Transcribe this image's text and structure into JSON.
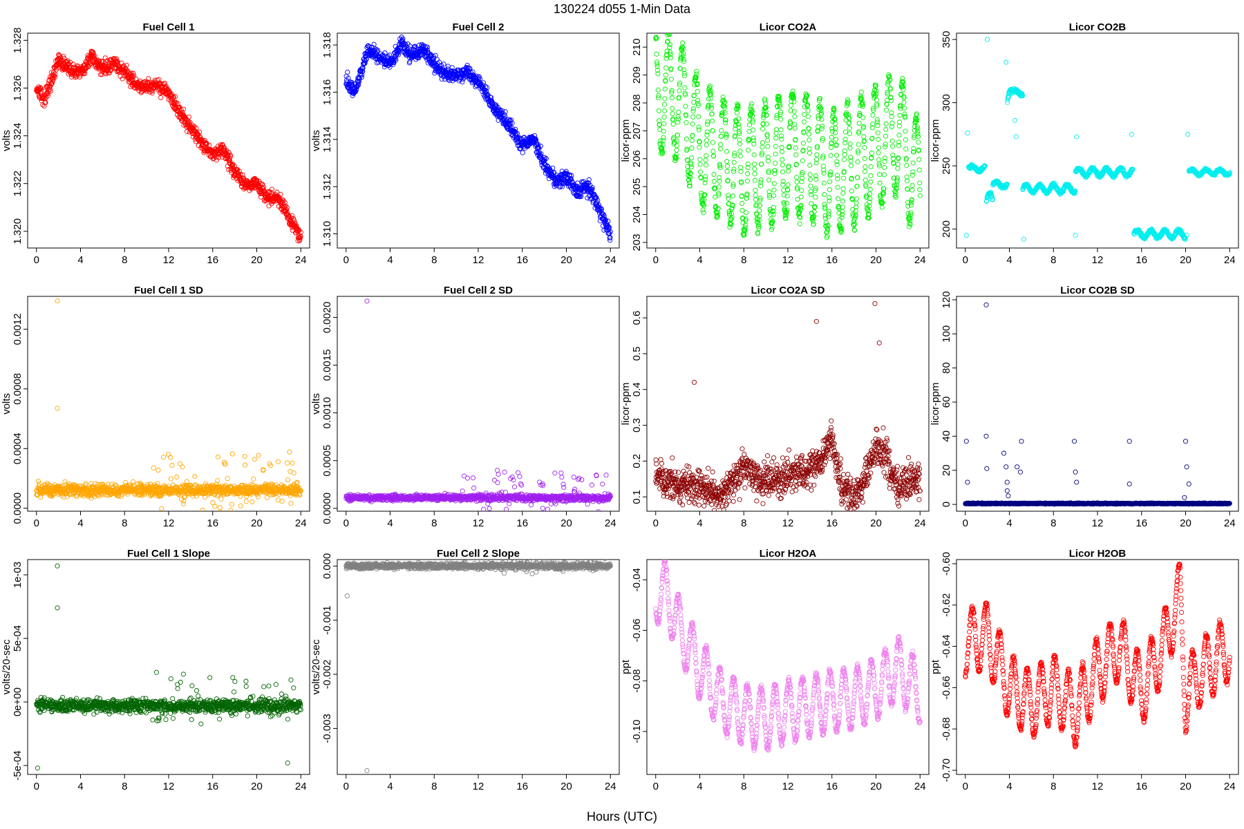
{
  "figure": {
    "title": "130224   d055   1-Min Data",
    "xlabel": "Hours (UTC)"
  },
  "chart_data": [
    {
      "id": "fc1",
      "type": "scatter",
      "title": "Fuel Cell 1",
      "ylabel": "volts",
      "color": "#ff0000",
      "xlim": [
        0,
        24
      ],
      "xticks": [
        "0",
        "4",
        "8",
        "12",
        "16",
        "20",
        "24"
      ],
      "ylim": [
        1.3193,
        1.3283
      ],
      "yticks": [
        {
          "v": 1.32,
          "label": "1.320"
        },
        {
          "v": 1.322,
          "label": "1.322"
        },
        {
          "v": 1.324,
          "label": "1.324"
        },
        {
          "v": 1.326,
          "label": "1.326"
        },
        {
          "v": 1.328,
          "label": "1.328"
        }
      ],
      "trend": [
        [
          0,
          1.326
        ],
        [
          0.7,
          1.3255
        ],
        [
          1.5,
          1.3265
        ],
        [
          2,
          1.3272
        ],
        [
          3,
          1.3268
        ],
        [
          4,
          1.3266
        ],
        [
          5,
          1.3273
        ],
        [
          6,
          1.3268
        ],
        [
          7,
          1.3271
        ],
        [
          8,
          1.3266
        ],
        [
          9,
          1.3262
        ],
        [
          10,
          1.326
        ],
        [
          11,
          1.3261
        ],
        [
          12,
          1.3258
        ],
        [
          13,
          1.325
        ],
        [
          14,
          1.3243
        ],
        [
          15,
          1.3237
        ],
        [
          16,
          1.3233
        ],
        [
          17,
          1.3234
        ],
        [
          18,
          1.3225
        ],
        [
          19,
          1.3219
        ],
        [
          20,
          1.322
        ],
        [
          21,
          1.3214
        ],
        [
          22,
          1.3214
        ],
        [
          23,
          1.3205
        ],
        [
          24,
          1.3197
        ]
      ],
      "noise": 0.0003,
      "outliers": []
    },
    {
      "id": "fc2",
      "type": "scatter",
      "title": "Fuel Cell 2",
      "ylabel": "volts",
      "color": "#0000ff",
      "xlim": [
        0,
        24
      ],
      "xticks": [
        "0",
        "4",
        "8",
        "12",
        "16",
        "20",
        "24"
      ],
      "ylim": [
        1.3094,
        1.3185
      ],
      "yticks": [
        {
          "v": 1.31,
          "label": "1.310"
        },
        {
          "v": 1.312,
          "label": "1.312"
        },
        {
          "v": 1.314,
          "label": "1.314"
        },
        {
          "v": 1.316,
          "label": "1.316"
        },
        {
          "v": 1.318,
          "label": "1.318"
        }
      ],
      "trend": [
        [
          0,
          1.3165
        ],
        [
          0.7,
          1.316
        ],
        [
          1.5,
          1.317
        ],
        [
          2,
          1.3178
        ],
        [
          3,
          1.3175
        ],
        [
          4,
          1.3172
        ],
        [
          5,
          1.318
        ],
        [
          6,
          1.3175
        ],
        [
          7,
          1.3178
        ],
        [
          8,
          1.3172
        ],
        [
          9,
          1.3168
        ],
        [
          10,
          1.3167
        ],
        [
          11,
          1.3168
        ],
        [
          12,
          1.3165
        ],
        [
          13,
          1.3157
        ],
        [
          14,
          1.315
        ],
        [
          15,
          1.3145
        ],
        [
          16,
          1.3137
        ],
        [
          17,
          1.314
        ],
        [
          18,
          1.313
        ],
        [
          19,
          1.3122
        ],
        [
          20,
          1.3124
        ],
        [
          21,
          1.3118
        ],
        [
          22,
          1.312
        ],
        [
          23,
          1.311
        ],
        [
          24,
          1.31
        ]
      ],
      "noise": 0.0003,
      "outliers": []
    },
    {
      "id": "co2a",
      "type": "scatter",
      "title": "Licor CO2A",
      "ylabel": "licor-ppm",
      "color": "#00ee00",
      "xlim": [
        0,
        24
      ],
      "xticks": [
        "0",
        "4",
        "8",
        "12",
        "16",
        "20",
        "24"
      ],
      "ylim": [
        202.8,
        210.5
      ],
      "yticks": [
        {
          "v": 203,
          "label": "203"
        },
        {
          "v": 204,
          "label": "204"
        },
        {
          "v": 205,
          "label": "205"
        },
        {
          "v": 206,
          "label": "206"
        },
        {
          "v": 207,
          "label": "207"
        },
        {
          "v": 208,
          "label": "208"
        },
        {
          "v": 209,
          "label": "209"
        },
        {
          "v": 210,
          "label": "210"
        }
      ],
      "trend": [
        [
          0,
          208.5
        ],
        [
          2,
          208.2
        ],
        [
          4,
          206.5
        ],
        [
          6,
          206.0
        ],
        [
          8,
          205.5
        ],
        [
          10,
          205.8
        ],
        [
          12,
          206.2
        ],
        [
          14,
          206.0
        ],
        [
          16,
          205.5
        ],
        [
          18,
          205.8
        ],
        [
          20,
          206.3
        ],
        [
          22,
          207.0
        ],
        [
          24,
          205.0
        ]
      ],
      "osc": {
        "amp": 2.2,
        "period": 1.25
      },
      "noise": 0.25,
      "outliers": []
    },
    {
      "id": "co2b",
      "type": "scatter",
      "title": "Licor CO2B",
      "ylabel": "licor-ppm",
      "color": "#00eeee",
      "xlim": [
        0,
        24
      ],
      "xticks": [
        "0",
        "4",
        "8",
        "12",
        "16",
        "20",
        "24"
      ],
      "ylim": [
        185,
        355
      ],
      "yticks": [
        {
          "v": 200,
          "label": "200"
        },
        {
          "v": 250,
          "label": "250"
        },
        {
          "v": 300,
          "label": "300"
        },
        {
          "v": 350,
          "label": "350"
        }
      ],
      "segments": [
        [
          0.3,
          1.8,
          248,
          2
        ],
        [
          1.9,
          2.5,
          222,
          6
        ],
        [
          2.5,
          3.8,
          235,
          2
        ],
        [
          3.8,
          4.2,
          300,
          10
        ],
        [
          4.2,
          5.2,
          308,
          2
        ],
        [
          5.2,
          10,
          232,
          3
        ],
        [
          10,
          15.2,
          245,
          3
        ],
        [
          15.3,
          20,
          196,
          3
        ],
        [
          20.3,
          24,
          245,
          2
        ]
      ],
      "noise": 1.2,
      "outliers": [
        [
          0.1,
          195
        ],
        [
          0.2,
          276
        ],
        [
          2.0,
          350
        ],
        [
          3.7,
          332
        ],
        [
          5.3,
          192
        ],
        [
          10.0,
          195
        ],
        [
          10.1,
          273
        ],
        [
          15.1,
          275
        ],
        [
          20.1,
          195
        ],
        [
          20.2,
          275
        ],
        [
          4.5,
          286
        ],
        [
          4.6,
          273
        ]
      ]
    },
    {
      "id": "fc1sd",
      "type": "scatter",
      "title": "Fuel Cell 1 SD",
      "ylabel": "volts",
      "color": "#ffa500",
      "xlim": [
        0,
        24
      ],
      "xticks": [
        "0",
        "4",
        "8",
        "12",
        "16",
        "20",
        "24"
      ],
      "ylim": [
        -2e-05,
        0.00142
      ],
      "yticks": [
        {
          "v": 0.0,
          "label": "0.0000"
        },
        {
          "v": 0.0004,
          "label": "0.0004"
        },
        {
          "v": 0.0008,
          "label": "0.0008"
        },
        {
          "v": 0.0012,
          "label": "0.0012"
        }
      ],
      "base": 0.00012,
      "noise": 4e-05,
      "hiSpread": 0.00025,
      "outliers": [
        [
          1.9,
          0.00139
        ],
        [
          1.9,
          0.00067
        ]
      ]
    },
    {
      "id": "fc2sd",
      "type": "scatter",
      "title": "Fuel Cell 2 SD",
      "ylabel": "volts",
      "color": "#a020f0",
      "xlim": [
        0,
        24
      ],
      "xticks": [
        "0",
        "4",
        "8",
        "12",
        "16",
        "20",
        "24"
      ],
      "ylim": [
        -3e-05,
        0.00222
      ],
      "yticks": [
        {
          "v": 0.0,
          "label": "0.0000"
        },
        {
          "v": 0.0005,
          "label": "0.0005"
        },
        {
          "v": 0.001,
          "label": "0.0010"
        },
        {
          "v": 0.0015,
          "label": "0.0015"
        },
        {
          "v": 0.002,
          "label": "0.0020"
        }
      ],
      "base": 0.00011,
      "noise": 3e-05,
      "hiSpread": 0.00028,
      "outliers": [
        [
          1.9,
          0.00217
        ]
      ]
    },
    {
      "id": "co2asd",
      "type": "scatter",
      "title": "Licor CO2A SD",
      "ylabel": "licor-ppm",
      "color": "#8b0000",
      "xlim": [
        0,
        24
      ],
      "xticks": [
        "0",
        "4",
        "8",
        "12",
        "16",
        "20",
        "24"
      ],
      "ylim": [
        0.06,
        0.66
      ],
      "yticks": [
        {
          "v": 0.1,
          "label": "0.1"
        },
        {
          "v": 0.2,
          "label": "0.2"
        },
        {
          "v": 0.3,
          "label": "0.3"
        },
        {
          "v": 0.4,
          "label": "0.4"
        },
        {
          "v": 0.5,
          "label": "0.5"
        },
        {
          "v": 0.6,
          "label": "0.6"
        }
      ],
      "trend": [
        [
          0,
          0.16
        ],
        [
          2,
          0.13
        ],
        [
          4,
          0.13
        ],
        [
          6,
          0.1
        ],
        [
          8,
          0.18
        ],
        [
          10,
          0.14
        ],
        [
          12,
          0.16
        ],
        [
          14,
          0.17
        ],
        [
          16,
          0.26
        ],
        [
          17,
          0.12
        ],
        [
          18,
          0.1
        ],
        [
          19,
          0.14
        ],
        [
          20,
          0.25
        ],
        [
          21,
          0.2
        ],
        [
          22,
          0.12
        ],
        [
          24,
          0.16
        ]
      ],
      "noise": 0.05,
      "outliers": [
        [
          14.6,
          0.59
        ],
        [
          19.9,
          0.64
        ],
        [
          3.5,
          0.42
        ],
        [
          20.3,
          0.53
        ]
      ]
    },
    {
      "id": "co2bsd",
      "type": "scatter",
      "title": "Licor CO2B SD",
      "ylabel": "licor-ppm",
      "color": "#000080",
      "xlim": [
        0,
        24
      ],
      "xticks": [
        "0",
        "4",
        "8",
        "12",
        "16",
        "20",
        "24"
      ],
      "ylim": [
        -4,
        122
      ],
      "yticks": [
        {
          "v": 0,
          "label": "0"
        },
        {
          "v": 20,
          "label": "20"
        },
        {
          "v": 40,
          "label": "40"
        },
        {
          "v": 60,
          "label": "60"
        },
        {
          "v": 80,
          "label": "80"
        },
        {
          "v": 100,
          "label": "100"
        },
        {
          "v": 120,
          "label": "120"
        }
      ],
      "base": 0.5,
      "noise": 0.3,
      "outliers": [
        [
          1.9,
          117
        ],
        [
          0.1,
          37
        ],
        [
          0.2,
          13
        ],
        [
          1.9,
          40
        ],
        [
          1.95,
          21
        ],
        [
          3.5,
          30
        ],
        [
          3.7,
          22
        ],
        [
          3.8,
          13
        ],
        [
          3.8,
          8
        ],
        [
          3.9,
          5
        ],
        [
          4.7,
          22
        ],
        [
          5.0,
          19
        ],
        [
          5.1,
          37
        ],
        [
          9.9,
          37
        ],
        [
          10.0,
          19
        ],
        [
          10.1,
          13
        ],
        [
          14.9,
          37
        ],
        [
          14.9,
          12
        ],
        [
          20.0,
          37
        ],
        [
          20.1,
          22
        ],
        [
          20.3,
          12
        ],
        [
          19.9,
          4
        ]
      ]
    },
    {
      "id": "fc1slope",
      "type": "scatter",
      "title": "Fuel Cell 1 Slope",
      "ylabel": "volts/20-sec",
      "color": "#006400",
      "xlim": [
        0,
        24
      ],
      "xticks": [
        "0",
        "4",
        "8",
        "12",
        "16",
        "20",
        "24"
      ],
      "ylim": [
        -0.00057,
        0.00112
      ],
      "yticks": [
        {
          "v": -0.0005,
          "label": "-5e-04"
        },
        {
          "v": 0.0,
          "label": "0e+00"
        },
        {
          "v": 0.0005,
          "label": "5e-04"
        },
        {
          "v": 0.001,
          "label": "1e-03"
        }
      ],
      "base": -3e-05,
      "noise": 5e-05,
      "hiSpread": 0.00022,
      "outliers": [
        [
          1.9,
          0.00107
        ],
        [
          1.9,
          0.00074
        ],
        [
          0.1,
          -0.00052
        ],
        [
          22.8,
          -0.00048
        ]
      ]
    },
    {
      "id": "fc2slope",
      "type": "scatter",
      "title": "Fuel Cell 2 Slope",
      "ylabel": "volts/20-sec",
      "color": "#808080",
      "xlim": [
        0,
        24
      ],
      "xticks": [
        "0",
        "4",
        "8",
        "12",
        "16",
        "20",
        "24"
      ],
      "ylim": [
        -0.00385,
        0.00012
      ],
      "yticks": [
        {
          "v": -0.003,
          "label": "-0.003"
        },
        {
          "v": -0.002,
          "label": "-0.002"
        },
        {
          "v": -0.001,
          "label": "-0.001"
        },
        {
          "v": 0.0,
          "label": "0.000"
        }
      ],
      "base": 0.0,
      "noise": 5e-05,
      "hiSpread": 0.00025,
      "outliers": [
        [
          1.9,
          -0.00378
        ],
        [
          0.1,
          -0.00055
        ]
      ]
    },
    {
      "id": "h2oa",
      "type": "scatter",
      "title": "Licor H2OA",
      "ylabel": "ppt",
      "color": "#ee82ee",
      "xlim": [
        0,
        24
      ],
      "xticks": [
        "0",
        "4",
        "8",
        "12",
        "16",
        "20",
        "24"
      ],
      "ylim": [
        -0.117,
        -0.032
      ],
      "yticks": [
        {
          "v": -0.1,
          "label": "-0.10"
        },
        {
          "v": -0.08,
          "label": "-0.08"
        },
        {
          "v": -0.06,
          "label": "-0.06"
        },
        {
          "v": -0.04,
          "label": "-0.04"
        }
      ],
      "trend": [
        [
          0,
          -0.045
        ],
        [
          1,
          -0.045
        ],
        [
          2,
          -0.058
        ],
        [
          4,
          -0.075
        ],
        [
          6,
          -0.088
        ],
        [
          8,
          -0.093
        ],
        [
          10,
          -0.095
        ],
        [
          12,
          -0.092
        ],
        [
          14,
          -0.09
        ],
        [
          16,
          -0.088
        ],
        [
          18,
          -0.087
        ],
        [
          20,
          -0.083
        ],
        [
          22,
          -0.075
        ],
        [
          24,
          -0.085
        ]
      ],
      "osc": {
        "amp": 0.012,
        "period": 1.25
      },
      "noise": 0.0015,
      "outliers": []
    },
    {
      "id": "h2ob",
      "type": "scatter",
      "title": "Licor H2OB",
      "ylabel": "ppt",
      "color": "#ff0000",
      "xlim": [
        0,
        24
      ],
      "xticks": [
        "0",
        "4",
        "8",
        "12",
        "16",
        "20",
        "24"
      ],
      "ylim": [
        -0.702,
        -0.598
      ],
      "yticks": [
        {
          "v": -0.7,
          "label": "-0.70"
        },
        {
          "v": -0.68,
          "label": "-0.68"
        },
        {
          "v": -0.66,
          "label": "-0.66"
        },
        {
          "v": -0.64,
          "label": "-0.64"
        },
        {
          "v": -0.62,
          "label": "-0.62"
        },
        {
          "v": -0.6,
          "label": "-0.60"
        }
      ],
      "trend": [
        [
          0,
          -0.638
        ],
        [
          2,
          -0.635
        ],
        [
          4,
          -0.66
        ],
        [
          6,
          -0.668
        ],
        [
          8,
          -0.66
        ],
        [
          10,
          -0.672
        ],
        [
          12,
          -0.652
        ],
        [
          14,
          -0.64
        ],
        [
          16,
          -0.662
        ],
        [
          18,
          -0.64
        ],
        [
          19.5,
          -0.615
        ],
        [
          20,
          -0.665
        ],
        [
          21,
          -0.655
        ],
        [
          22,
          -0.65
        ],
        [
          24,
          -0.64
        ]
      ],
      "osc": {
        "amp": 0.016,
        "period": 1.25
      },
      "noise": 0.0015,
      "outliers": []
    }
  ]
}
